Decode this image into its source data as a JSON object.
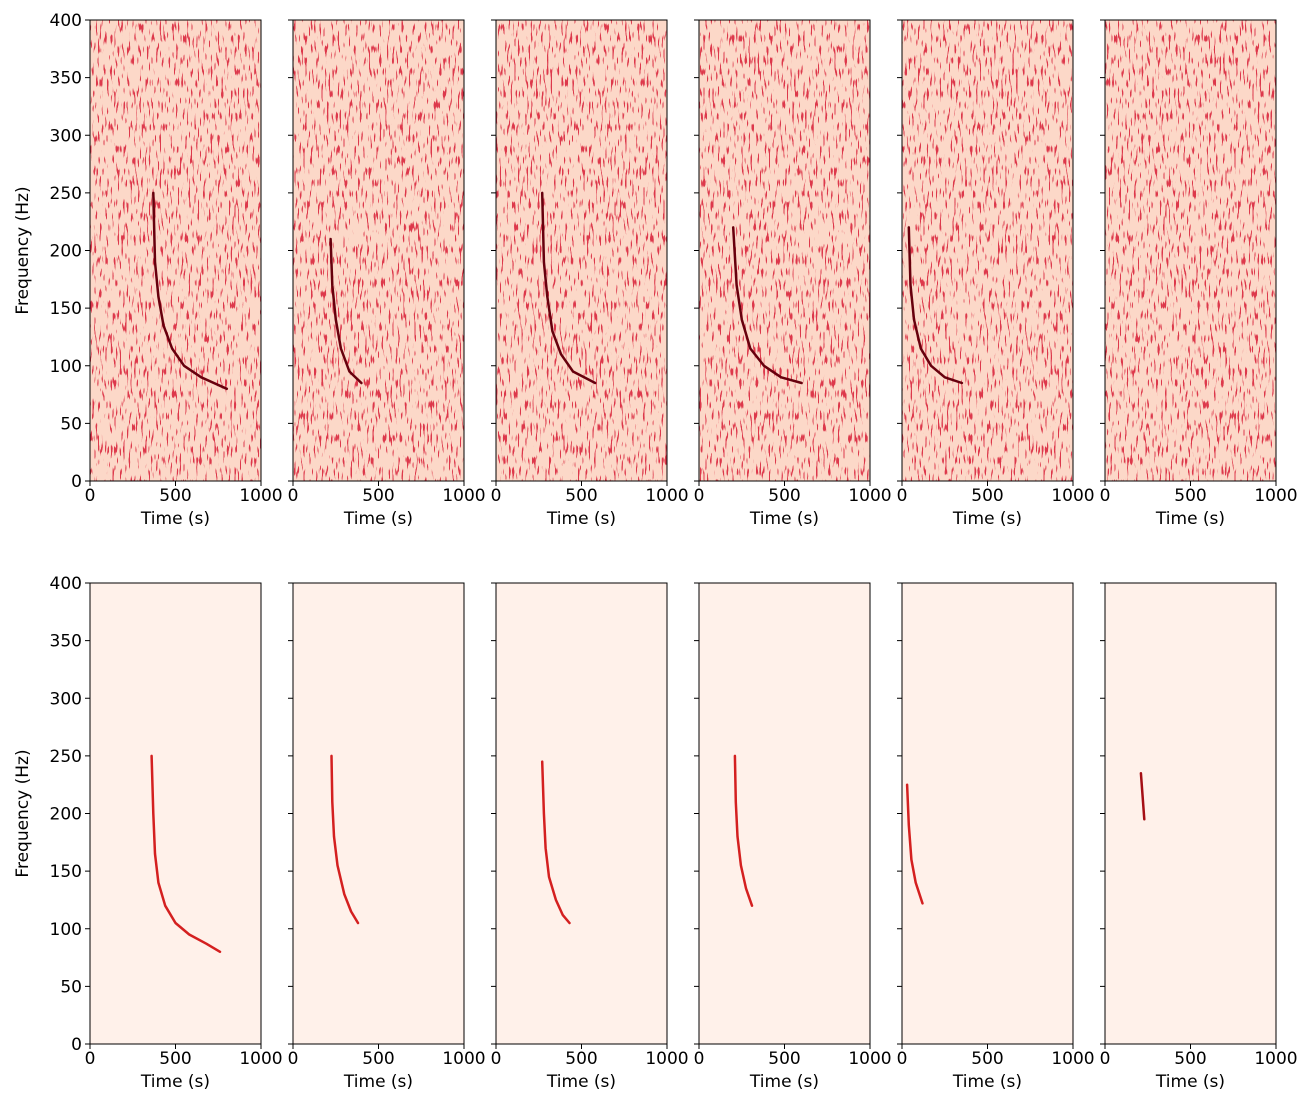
{
  "chart_data": [
    {
      "type": "line",
      "xlabel": "Time (s)",
      "ylabel": "Frequency (Hz)",
      "xlim": [
        0,
        1000
      ],
      "ylim": [
        0,
        400
      ],
      "xticks": [
        0,
        500,
        1000
      ],
      "yticks": [
        0,
        50,
        100,
        150,
        200,
        250,
        300,
        350,
        400
      ],
      "background": "#fcd8c8",
      "color": "#67000d",
      "x": [
        370,
        380,
        400,
        430,
        480,
        550,
        650,
        800
      ],
      "y": [
        250,
        190,
        160,
        135,
        115,
        100,
        90,
        80
      ]
    },
    {
      "type": "line",
      "xlabel": "Time (s)",
      "xlim": [
        0,
        1000
      ],
      "ylim": [
        0,
        400
      ],
      "xticks": [
        0,
        500,
        1000
      ],
      "yticks": [
        0,
        50,
        100,
        150,
        200,
        250,
        300,
        350,
        400
      ],
      "background": "#fcd8c8",
      "color": "#67000d",
      "x": [
        220,
        230,
        250,
        280,
        330,
        400
      ],
      "y": [
        210,
        170,
        140,
        115,
        95,
        85
      ]
    },
    {
      "type": "line",
      "xlabel": "Time (s)",
      "xlim": [
        0,
        1000
      ],
      "ylim": [
        0,
        400
      ],
      "xticks": [
        0,
        500,
        1000
      ],
      "yticks": [
        0,
        50,
        100,
        150,
        200,
        250,
        300,
        350,
        400
      ],
      "background": "#fcd8c8",
      "color": "#67000d",
      "x": [
        270,
        280,
        300,
        330,
        380,
        450,
        580
      ],
      "y": [
        250,
        190,
        160,
        130,
        110,
        95,
        85
      ]
    },
    {
      "type": "line",
      "xlabel": "Time (s)",
      "xlim": [
        0,
        1000
      ],
      "ylim": [
        0,
        400
      ],
      "xticks": [
        0,
        500,
        1000
      ],
      "yticks": [
        0,
        50,
        100,
        150,
        200,
        250,
        300,
        350,
        400
      ],
      "background": "#fcd8c8",
      "color": "#67000d",
      "x": [
        200,
        220,
        250,
        300,
        380,
        480,
        600
      ],
      "y": [
        220,
        170,
        140,
        115,
        100,
        90,
        85
      ]
    },
    {
      "type": "line",
      "xlabel": "Time (s)",
      "xlim": [
        0,
        1000
      ],
      "ylim": [
        0,
        400
      ],
      "xticks": [
        0,
        500,
        1000
      ],
      "yticks": [
        0,
        50,
        100,
        150,
        200,
        250,
        300,
        350,
        400
      ],
      "background": "#fcd8c8",
      "color": "#67000d",
      "x": [
        40,
        50,
        70,
        110,
        170,
        250,
        350
      ],
      "y": [
        220,
        170,
        140,
        115,
        100,
        90,
        85
      ]
    },
    {
      "type": "line",
      "xlabel": "Time (s)",
      "xlim": [
        0,
        1000
      ],
      "ylim": [
        0,
        400
      ],
      "xticks": [
        0,
        500,
        1000
      ],
      "yticks": [
        0,
        50,
        100,
        150,
        200,
        250,
        300,
        350,
        400
      ],
      "background": "#fcd8c8",
      "color": "#67000d",
      "x": [],
      "y": []
    },
    {
      "type": "line",
      "xlabel": "Time (s)",
      "ylabel": "Frequency (Hz)",
      "xlim": [
        0,
        1000
      ],
      "ylim": [
        0,
        400
      ],
      "xticks": [
        0,
        500,
        1000
      ],
      "yticks": [
        0,
        50,
        100,
        150,
        200,
        250,
        300,
        350,
        400
      ],
      "background": "#fff1ea",
      "color": "#d42020",
      "x": [
        360,
        370,
        380,
        400,
        440,
        500,
        580,
        680,
        760
      ],
      "y": [
        250,
        200,
        165,
        140,
        120,
        105,
        95,
        87,
        80
      ]
    },
    {
      "type": "line",
      "xlabel": "Time (s)",
      "xlim": [
        0,
        1000
      ],
      "ylim": [
        0,
        400
      ],
      "xticks": [
        0,
        500,
        1000
      ],
      "yticks": [
        0,
        50,
        100,
        150,
        200,
        250,
        300,
        350,
        400
      ],
      "background": "#fff1ea",
      "color": "#d42020",
      "x": [
        225,
        230,
        240,
        260,
        300,
        340,
        380
      ],
      "y": [
        250,
        210,
        180,
        155,
        130,
        115,
        105
      ]
    },
    {
      "type": "line",
      "xlabel": "Time (s)",
      "xlim": [
        0,
        1000
      ],
      "ylim": [
        0,
        400
      ],
      "xticks": [
        0,
        500,
        1000
      ],
      "yticks": [
        0,
        50,
        100,
        150,
        200,
        250,
        300,
        350,
        400
      ],
      "background": "#fff1ea",
      "color": "#d42020",
      "x": [
        270,
        280,
        290,
        310,
        350,
        390,
        430
      ],
      "y": [
        245,
        200,
        170,
        145,
        125,
        112,
        105
      ]
    },
    {
      "type": "line",
      "xlabel": "Time (s)",
      "xlim": [
        0,
        1000
      ],
      "ylim": [
        0,
        400
      ],
      "xticks": [
        0,
        500,
        1000
      ],
      "yticks": [
        0,
        50,
        100,
        150,
        200,
        250,
        300,
        350,
        400
      ],
      "background": "#fff1ea",
      "color": "#d42020",
      "x": [
        210,
        215,
        225,
        245,
        275,
        310
      ],
      "y": [
        250,
        210,
        180,
        155,
        135,
        120
      ]
    },
    {
      "type": "line",
      "xlabel": "Time (s)",
      "xlim": [
        0,
        1000
      ],
      "ylim": [
        0,
        400
      ],
      "xticks": [
        0,
        500,
        1000
      ],
      "yticks": [
        0,
        50,
        100,
        150,
        200,
        250,
        300,
        350,
        400
      ],
      "background": "#fff1ea",
      "color": "#d42020",
      "x": [
        30,
        40,
        55,
        80,
        120
      ],
      "y": [
        225,
        190,
        160,
        140,
        122
      ]
    },
    {
      "type": "line",
      "xlabel": "Time (s)",
      "xlim": [
        0,
        1000
      ],
      "ylim": [
        0,
        400
      ],
      "xticks": [
        0,
        500,
        1000
      ],
      "yticks": [
        0,
        50,
        100,
        150,
        200,
        250,
        300,
        350,
        400
      ],
      "background": "#fff1ea",
      "color": "#a50f15",
      "x": [
        210,
        220,
        230
      ],
      "y": [
        235,
        215,
        195
      ]
    }
  ]
}
